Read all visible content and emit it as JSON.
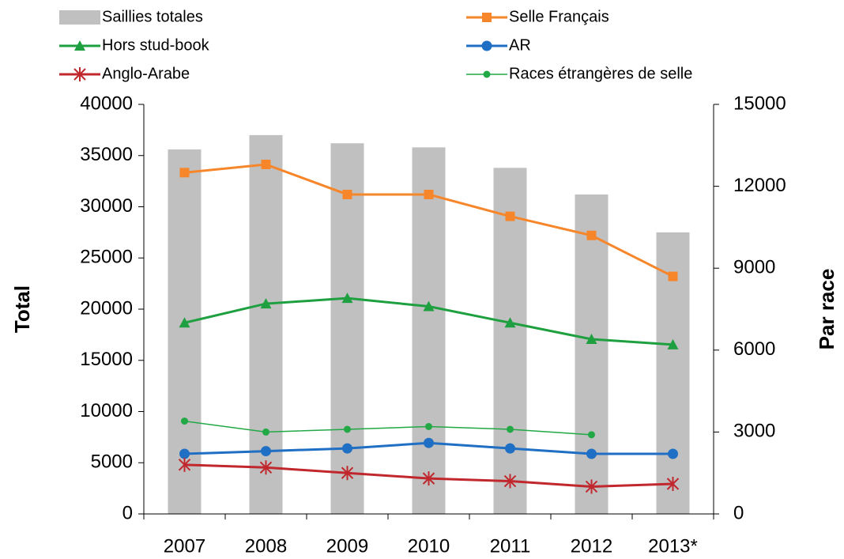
{
  "chart_data": {
    "type": "bar-line",
    "categories": [
      "2007",
      "2008",
      "2009",
      "2010",
      "2011",
      "2012",
      "2013*"
    ],
    "ylabel": "Total",
    "y2label": "Par race",
    "ylim": [
      0,
      40000
    ],
    "yticks": [
      0,
      5000,
      10000,
      15000,
      20000,
      25000,
      30000,
      35000,
      40000
    ],
    "y2lim": [
      0,
      15000
    ],
    "y2ticks": [
      0,
      3000,
      6000,
      9000,
      12000,
      15000
    ],
    "series": [
      {
        "name": "Saillies totales",
        "type": "bar",
        "color": "#c0c0c0",
        "values": [
          35600,
          37000,
          36200,
          35800,
          33800,
          31200,
          27500
        ]
      },
      {
        "name": "Selle Français",
        "type": "line",
        "axis": "y2",
        "marker": "square",
        "color": "#f7862a",
        "values": [
          12500,
          12800,
          11700,
          11700,
          10900,
          10200,
          8700
        ]
      },
      {
        "name": "Hors stud-book",
        "type": "line",
        "axis": "y2",
        "marker": "triangle",
        "color": "#1fa040",
        "values": [
          7000,
          7700,
          7900,
          7600,
          7000,
          6400,
          6200
        ]
      },
      {
        "name": "AR",
        "type": "line",
        "axis": "y2",
        "marker": "circle",
        "color": "#1f6fc4",
        "values": [
          2200,
          2300,
          2400,
          2600,
          2400,
          2200,
          2200
        ]
      },
      {
        "name": "Anglo-Arabe",
        "type": "line",
        "axis": "y2",
        "marker": "asterisk",
        "color": "#c0282d",
        "values": [
          1800,
          1700,
          1500,
          1300,
          1200,
          1000,
          1100
        ]
      },
      {
        "name": "Races étrangères de selle",
        "type": "line",
        "axis": "y2",
        "marker": "small-circle",
        "color": "#22a845",
        "values": [
          3400,
          3000,
          3100,
          3200,
          3100,
          2900,
          null
        ]
      }
    ]
  }
}
